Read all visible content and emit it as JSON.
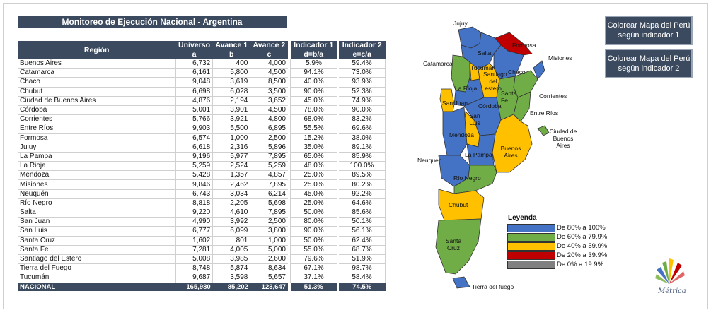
{
  "title": "Monitoreo de Ejecución Nacional - Argentina",
  "columns": {
    "region": "Región",
    "universo": [
      "Universo",
      "a"
    ],
    "avance1": [
      "Avance 1",
      "b"
    ],
    "avance2": [
      "Avance 2",
      "c"
    ],
    "ind1": [
      "Indicador 1",
      "d=b/a"
    ],
    "ind2": [
      "Indicador 2",
      "e=c/a"
    ]
  },
  "rows": [
    [
      "Buenos Aires",
      "6,732",
      "400",
      "4,000",
      "5.9%",
      "59.4%"
    ],
    [
      "Catamarca",
      "6,161",
      "5,800",
      "4,500",
      "94.1%",
      "73.0%"
    ],
    [
      "Chaco",
      "9,048",
      "3,619",
      "8,500",
      "40.0%",
      "93.9%"
    ],
    [
      "Chubut",
      "6,698",
      "6,028",
      "3,500",
      "90.0%",
      "52.3%"
    ],
    [
      "Ciudad de Buenos Aires",
      "4,876",
      "2,194",
      "3,652",
      "45.0%",
      "74.9%"
    ],
    [
      "Córdoba",
      "5,001",
      "3,901",
      "4,500",
      "78.0%",
      "90.0%"
    ],
    [
      "Corrientes",
      "5,766",
      "3,921",
      "4,800",
      "68.0%",
      "83.2%"
    ],
    [
      "Entre Ríos",
      "9,903",
      "5,500",
      "6,895",
      "55.5%",
      "69.6%"
    ],
    [
      "Formosa",
      "6,574",
      "1,000",
      "2,500",
      "15.2%",
      "38.0%"
    ],
    [
      "Jujuy",
      "6,618",
      "2,316",
      "5,896",
      "35.0%",
      "89.1%"
    ],
    [
      "La Pampa",
      "9,196",
      "5,977",
      "7,895",
      "65.0%",
      "85.9%"
    ],
    [
      "La Rioja",
      "5,259",
      "2,524",
      "5,259",
      "48.0%",
      "100.0%"
    ],
    [
      "Mendoza",
      "5,428",
      "1,357",
      "4,857",
      "25.0%",
      "89.5%"
    ],
    [
      "Misiones",
      "9,846",
      "2,462",
      "7,895",
      "25.0%",
      "80.2%"
    ],
    [
      "Neuquén",
      "6,743",
      "3,034",
      "6,214",
      "45.0%",
      "92.2%"
    ],
    [
      "Río Negro",
      "8,818",
      "2,205",
      "5,698",
      "25.0%",
      "64.6%"
    ],
    [
      "Salta",
      "9,220",
      "4,610",
      "7,895",
      "50.0%",
      "85.6%"
    ],
    [
      "San Juan",
      "4,990",
      "3,992",
      "2,500",
      "80.0%",
      "50.1%"
    ],
    [
      "San Luis",
      "6,777",
      "6,099",
      "3,800",
      "90.0%",
      "56.1%"
    ],
    [
      "Santa Cruz",
      "1,602",
      "801",
      "1,000",
      "50.0%",
      "62.4%"
    ],
    [
      "Santa Fe",
      "7,281",
      "4,005",
      "5,000",
      "55.0%",
      "68.7%"
    ],
    [
      "Santiago del Estero",
      "5,008",
      "3,985",
      "2,600",
      "79.6%",
      "51.9%"
    ],
    [
      "Tierra del Fuego",
      "8,748",
      "5,874",
      "8,634",
      "67.1%",
      "98.7%"
    ],
    [
      "Tucumán",
      "9,687",
      "3,598",
      "5,657",
      "37.1%",
      "58.4%"
    ]
  ],
  "total": [
    "NACIONAL",
    "165,980",
    "85,202",
    "123,647",
    "51.3%",
    "74.5%"
  ],
  "buttons": {
    "b1": "Colorear Mapa del Perú según indicador 1",
    "b2": "Colorear Mapa del Perú según indicador 2"
  },
  "map_labels": {
    "jujuy": "Jujuy",
    "formosa": "Formosa",
    "misiones": "Misiones",
    "salta": "Salta",
    "catamarca": "Catamarca",
    "tucuman": "Tucumán",
    "santiago": "Santiago del estero",
    "chaco": "Chaco",
    "larioja": "La Rioja",
    "santafe": "Santa Fe",
    "corrientes": "Corrientes",
    "sanjuan": "San Juan",
    "cordoba": "Córdoba",
    "entrerios": "Entre Ríos",
    "sanluis": "San Luis",
    "mendoza": "Mendoza",
    "ciudad": "Ciudad de Buenos Aires",
    "buenosaires": "Buenos Aires",
    "neuquen": "Neuquen",
    "lapampa": "La Pampa",
    "rionegro": "Río Negro",
    "chubut": "Chubut",
    "santacruz": "Santa Cruz",
    "tierra": "Tierra del fuego"
  },
  "legend": {
    "title": "Leyenda",
    "items": [
      {
        "label": "De 80% a 100%",
        "color": "#4472c4"
      },
      {
        "label": "De 60% a 79.9%",
        "color": "#70ad47"
      },
      {
        "label": "De 40% a 59.9%",
        "color": "#ffc000"
      },
      {
        "label": "De 20% a 39.9%",
        "color": "#c00000"
      },
      {
        "label": "De  0% a 19.9%",
        "color": "#808080"
      }
    ]
  },
  "logo_text": "Métrica",
  "colors": {
    "header": "#3b4a5e",
    "blue": "#4472c4",
    "green": "#70ad47",
    "yellow": "#ffc000",
    "red": "#c00000"
  }
}
